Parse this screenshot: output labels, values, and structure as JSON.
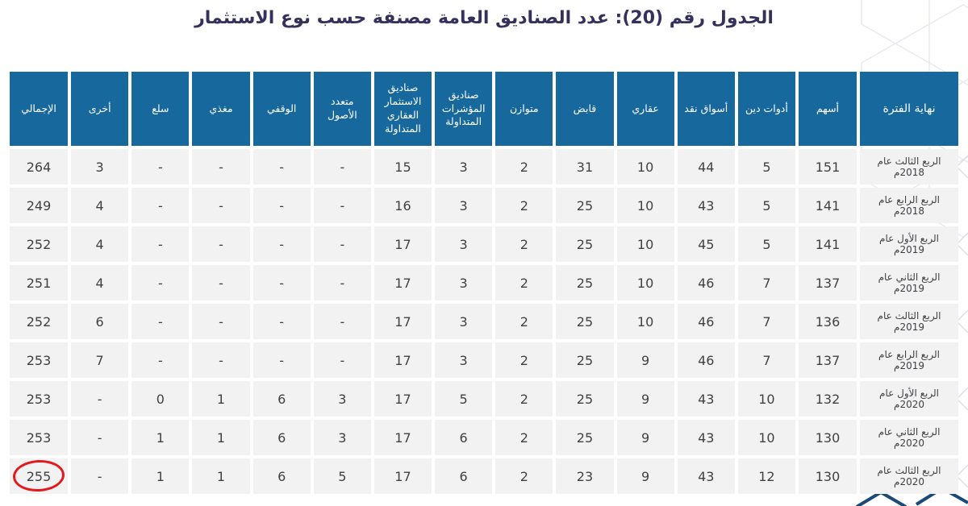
{
  "title": "الجدول رقم (20): عدد الصناديق العامة مصنفة حسب نوع الاستثمار",
  "colors": {
    "header_blue": "#17689d",
    "row_gray": "#f2f2f3",
    "title_navy": "#35315c",
    "highlight_red": "#e11a1e",
    "hex_pattern_gray": "#e9e9f0",
    "corner_navy": "#1a4a7a"
  },
  "table": {
    "columns": [
      {
        "id": "period",
        "label": "نهاية الفترة"
      },
      {
        "id": "equity",
        "label": "أسهم"
      },
      {
        "id": "debt",
        "label": "أدوات دين"
      },
      {
        "id": "money_market",
        "label": "أسواق نقد"
      },
      {
        "id": "real_estate",
        "label": "عقاري"
      },
      {
        "id": "holding",
        "label": "قابض"
      },
      {
        "id": "balanced",
        "label": "متوازن"
      },
      {
        "id": "etf",
        "label": "صناديق المؤشرات المتداولة"
      },
      {
        "id": "reit",
        "label": "صناديق الاستثمار العقاري المتداولة"
      },
      {
        "id": "multi_asset",
        "label": "متعدد الأصول"
      },
      {
        "id": "endowment",
        "label": "الوقفي"
      },
      {
        "id": "feeder",
        "label": "مغذي"
      },
      {
        "id": "commodities",
        "label": "سلع"
      },
      {
        "id": "other",
        "label": "أخرى"
      },
      {
        "id": "total",
        "label": "الإجمالي"
      }
    ],
    "rows": [
      {
        "period": "الربع الثالث عام 2018م",
        "values": [
          "151",
          "5",
          "44",
          "10",
          "31",
          "2",
          "3",
          "15",
          "-",
          "-",
          "-",
          "-",
          "3",
          "264"
        ]
      },
      {
        "period": "الربع الرابع عام 2018م",
        "values": [
          "141",
          "5",
          "43",
          "10",
          "25",
          "2",
          "3",
          "16",
          "-",
          "-",
          "-",
          "-",
          "4",
          "249"
        ]
      },
      {
        "period": "الربع الأول عام 2019م",
        "values": [
          "141",
          "5",
          "45",
          "10",
          "25",
          "2",
          "3",
          "17",
          "-",
          "-",
          "-",
          "-",
          "4",
          "252"
        ]
      },
      {
        "period": "الربع الثاني عام 2019م",
        "values": [
          "137",
          "7",
          "46",
          "10",
          "25",
          "2",
          "3",
          "17",
          "-",
          "-",
          "-",
          "-",
          "4",
          "251"
        ]
      },
      {
        "period": "الربع الثالث عام 2019م",
        "values": [
          "136",
          "7",
          "46",
          "10",
          "25",
          "2",
          "3",
          "17",
          "-",
          "-",
          "-",
          "-",
          "6",
          "252"
        ]
      },
      {
        "period": "الربع الرابع عام 2019م",
        "values": [
          "137",
          "7",
          "46",
          "9",
          "25",
          "2",
          "3",
          "17",
          "-",
          "-",
          "-",
          "-",
          "7",
          "253"
        ]
      },
      {
        "period": "الربع الأول عام 2020م",
        "values": [
          "132",
          "10",
          "43",
          "9",
          "25",
          "2",
          "5",
          "17",
          "3",
          "6",
          "1",
          "0",
          "-",
          "253"
        ]
      },
      {
        "period": "الربع الثاني عام 2020م",
        "values": [
          "130",
          "10",
          "43",
          "9",
          "25",
          "2",
          "6",
          "17",
          "3",
          "6",
          "1",
          "1",
          "-",
          "253"
        ]
      },
      {
        "period": "الربع الثالث عام 2020م",
        "values": [
          "130",
          "12",
          "43",
          "9",
          "23",
          "2",
          "6",
          "17",
          "5",
          "6",
          "1",
          "1",
          "-",
          "255"
        ]
      }
    ],
    "annotation": {
      "type": "red-ellipse",
      "circled_value": "255",
      "row_index": 8,
      "column_id": "total"
    }
  }
}
